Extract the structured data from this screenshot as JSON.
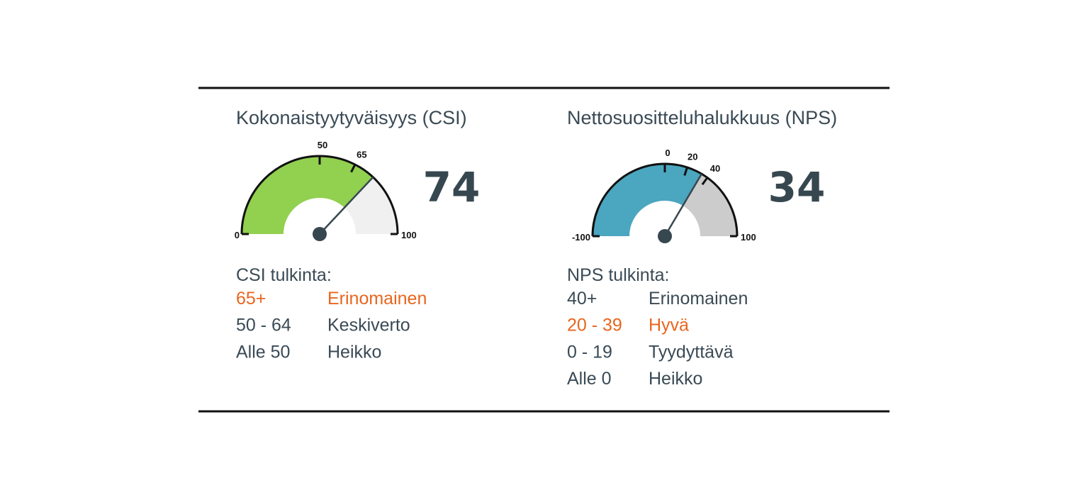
{
  "chart_data": [
    {
      "type": "gauge",
      "title": "Kokonaistyytyväisyys (CSI)",
      "value": 74,
      "range": [
        0,
        100
      ],
      "ticks": [
        0,
        50,
        65,
        100
      ],
      "color": "#92d050",
      "rest_color": "#f0f0f0"
    },
    {
      "type": "gauge",
      "title": "Nettosuositteluhalukkuus (NPS)",
      "value": 34,
      "range": [
        -100,
        100
      ],
      "ticks": [
        -100,
        0,
        20,
        40,
        100
      ],
      "color": "#4ba6bf",
      "rest_color": "#cccccc"
    }
  ],
  "interpretations": [
    {
      "title": "CSI tulkinta:",
      "rows": [
        [
          "65+",
          "Erinomainen"
        ],
        [
          "50 - 64",
          "Keskiverto"
        ],
        [
          "Alle 50",
          "Heikko"
        ]
      ],
      "highlight": 0,
      "highlight_color": "#e8661e"
    },
    {
      "title": "NPS tulkinta:",
      "rows": [
        [
          "40+",
          "Erinomainen"
        ],
        [
          "20 - 39",
          "Hyvä"
        ],
        [
          "0 - 19",
          "Tyydyttävä"
        ],
        [
          "Alle 0",
          "Heikko"
        ]
      ],
      "highlight": 1,
      "highlight_color": "#e8661e"
    }
  ]
}
